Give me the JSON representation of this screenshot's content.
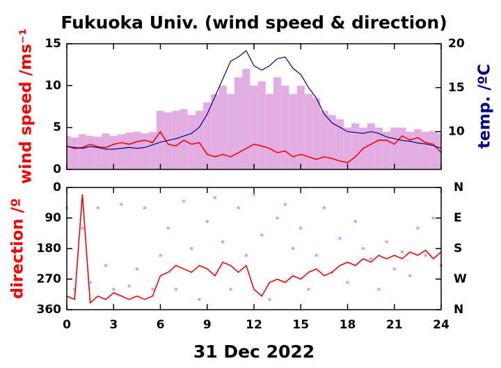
{
  "chart_data": [
    {
      "type": "line",
      "title": "Fukuoka Univ. (wind speed & direction)",
      "ylabel": "wind speed /ms⁻¹",
      "y2label": "temp. /ºC",
      "x": [
        0,
        0.5,
        1,
        1.5,
        2,
        2.5,
        3,
        3.5,
        4,
        4.5,
        5,
        5.5,
        6,
        6.5,
        7,
        7.5,
        8,
        8.5,
        9,
        9.5,
        10,
        10.5,
        11,
        11.5,
        12,
        12.5,
        13,
        13.5,
        14,
        14.5,
        15,
        15.5,
        16,
        16.5,
        17,
        17.5,
        18,
        18.5,
        19,
        19.5,
        20,
        20.5,
        21,
        21.5,
        22,
        22.5,
        23,
        23.5,
        24
      ],
      "xlim": [
        0,
        24
      ],
      "xticks": [
        0,
        3,
        6,
        9,
        12,
        15,
        18,
        21,
        24
      ],
      "xtick_labels": false,
      "ylim": [
        0,
        15
      ],
      "yticks": [
        0,
        5,
        10,
        15
      ],
      "y2lim": [
        5.7,
        20
      ],
      "y2ticks": [
        10,
        15,
        20
      ],
      "series": [
        {
          "style": "bars",
          "color": "#dda0dd",
          "values": [
            4,
            3.8,
            4.2,
            4,
            3.9,
            4.3,
            4,
            4.2,
            4.4,
            4.5,
            4.3,
            4.5,
            7,
            6.8,
            7,
            7.2,
            6.5,
            7,
            8,
            9,
            10,
            9,
            11,
            12,
            10,
            10.5,
            9,
            11,
            10,
            9,
            10,
            9,
            8.5,
            7,
            6.5,
            6,
            5,
            5.5,
            5,
            5.5,
            5,
            4.5,
            5,
            5,
            4.5,
            4.8,
            4.5,
            4.6,
            4.3
          ]
        },
        {
          "style": "line",
          "color": "#ff0000",
          "values": [
            2.8,
            2.5,
            2.6,
            3.0,
            2.7,
            2.6,
            3.0,
            3.2,
            3.0,
            3.3,
            3.5,
            3.2,
            4.5,
            3.0,
            2.8,
            3.5,
            3.0,
            3.2,
            1.8,
            1.5,
            1.8,
            1.5,
            2.0,
            2.5,
            3.0,
            2.8,
            2.5,
            2.0,
            2.2,
            1.5,
            1.8,
            1.5,
            1.2,
            1.5,
            1.3,
            1.0,
            0.8,
            1.5,
            2.5,
            3.0,
            3.5,
            3.5,
            3.0,
            4.0,
            3.5,
            3.8,
            3.2,
            3.0,
            2.0
          ]
        },
        {
          "style": "line",
          "axis": "y2",
          "color": "#00008b",
          "values": [
            8.3,
            8.2,
            8.1,
            8.3,
            8.2,
            8.0,
            8.0,
            8.1,
            8.2,
            8.1,
            8.2,
            8.5,
            8.8,
            9.0,
            9.2,
            9.5,
            9.8,
            10.5,
            12,
            14,
            16,
            18,
            18.5,
            19.2,
            17.5,
            17,
            17.5,
            18.3,
            18.5,
            17.2,
            16.5,
            15,
            13.8,
            12,
            11,
            10.5,
            10,
            9.9,
            9.8,
            10,
            9.8,
            9.4,
            9.2,
            9.0,
            8.9,
            8.7,
            8.6,
            8.4,
            8.1
          ]
        }
      ]
    },
    {
      "type": "line",
      "ylabel": "direction /º",
      "xlabel": "31 Dec 2022",
      "x": [
        0,
        0.5,
        1,
        1.5,
        2,
        2.5,
        3,
        3.5,
        4,
        4.5,
        5,
        5.5,
        6,
        6.5,
        7,
        7.5,
        8,
        8.5,
        9,
        9.5,
        10,
        10.5,
        11,
        11.5,
        12,
        12.5,
        13,
        13.5,
        14,
        14.5,
        15,
        15.5,
        16,
        16.5,
        17,
        17.5,
        18,
        18.5,
        19,
        19.5,
        20,
        20.5,
        21,
        21.5,
        22,
        22.5,
        23,
        23.5,
        24
      ],
      "xlim": [
        0,
        24
      ],
      "xticks": [
        0,
        3,
        6,
        9,
        12,
        15,
        18,
        21,
        24
      ],
      "xtick_labels": true,
      "ylim": [
        0,
        360
      ],
      "invert_y": true,
      "yticks": [
        0,
        90,
        180,
        270,
        360
      ],
      "y2lim": [
        0,
        360
      ],
      "y2ticks": [
        {
          "value": 0,
          "label": "N"
        },
        {
          "value": 90,
          "label": "E"
        },
        {
          "value": 180,
          "label": "S"
        },
        {
          "value": 270,
          "label": "W"
        },
        {
          "value": 360,
          "label": "N"
        }
      ],
      "series": [
        {
          "style": "points",
          "color": "#dda0dd",
          "values": [
            60,
            300,
            120,
            280,
            60,
            230,
            300,
            50,
            290,
            240,
            60,
            300,
            200,
            120,
            300,
            40,
            180,
            330,
            100,
            30,
            160,
            300,
            60,
            200,
            20,
            140,
            330,
            90,
            50,
            180,
            120,
            300,
            200,
            60,
            250,
            150,
            280,
            100,
            180,
            210,
            300,
            160,
            240,
            190,
            260,
            120,
            200,
            90,
            230
          ]
        },
        {
          "style": "line",
          "color": "#ff0000",
          "values": [
            320,
            330,
            20,
            340,
            320,
            330,
            310,
            320,
            330,
            320,
            330,
            320,
            260,
            250,
            230,
            240,
            250,
            230,
            240,
            260,
            220,
            230,
            250,
            230,
            300,
            320,
            280,
            270,
            280,
            260,
            270,
            250,
            240,
            260,
            250,
            230,
            220,
            230,
            210,
            220,
            200,
            210,
            200,
            210,
            190,
            200,
            185,
            210,
            190
          ]
        }
      ]
    }
  ]
}
